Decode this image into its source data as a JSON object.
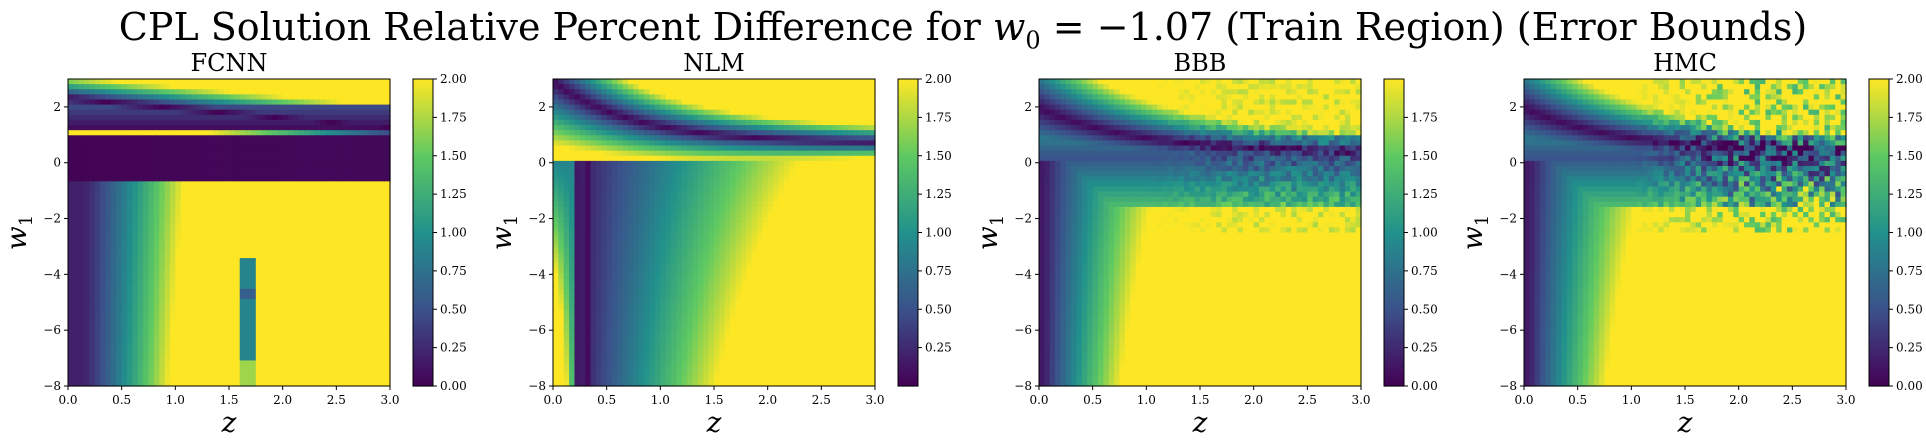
{
  "figure": {
    "title_prefix": "CPL Solution Relative Percent Difference for ",
    "title_var": "w",
    "title_sub": "0",
    "title_eq": " = −1.07",
    "title_suffix": " (Train Region) (Error Bounds)"
  },
  "colormap": "viridis",
  "colormap_stops": [
    "#440154",
    "#3b528b",
    "#21918c",
    "#5ec962",
    "#fde725"
  ],
  "chart_data": [
    {
      "type": "heatmap",
      "title": "FCNN",
      "xlabel": "z",
      "ylabel_var": "w",
      "ylabel_sub": "1",
      "xlim": [
        0,
        3
      ],
      "ylim": [
        -8,
        3
      ],
      "xticks": [
        0.0,
        0.5,
        1.0,
        1.5,
        2.0,
        2.5,
        3.0
      ],
      "yticks": [
        2,
        0,
        -2,
        -4,
        -6,
        -8
      ],
      "colorbar": {
        "vmin": 0.0,
        "vmax": 2.0,
        "ticks": [
          0.0,
          0.25,
          0.5,
          0.75,
          1.0,
          1.25,
          1.5,
          1.75,
          2.0
        ],
        "tick_labels": [
          "0.00",
          "0.25",
          "0.50",
          "0.75",
          "1.00",
          "1.25",
          "1.50",
          "1.75",
          "2.00"
        ]
      },
      "grid_resolution": [
        60,
        60
      ]
    },
    {
      "type": "heatmap",
      "title": "NLM",
      "xlabel": "z",
      "ylabel_var": "w",
      "ylabel_sub": "1",
      "xlim": [
        0,
        3
      ],
      "ylim": [
        -8,
        3
      ],
      "xticks": [
        0.0,
        0.5,
        1.0,
        1.5,
        2.0,
        2.5,
        3.0
      ],
      "yticks": [
        2,
        0,
        -2,
        -4,
        -6,
        -8
      ],
      "colorbar": {
        "vmin": 0.0,
        "vmax": 2.0,
        "ticks": [
          0.25,
          0.5,
          0.75,
          1.0,
          1.25,
          1.5,
          1.75,
          2.0
        ],
        "tick_labels": [
          "0.25",
          "0.50",
          "0.75",
          "1.00",
          "1.25",
          "1.50",
          "1.75",
          "2.00"
        ]
      },
      "grid_resolution": [
        60,
        60
      ]
    },
    {
      "type": "heatmap",
      "title": "BBB",
      "xlabel": "z",
      "ylabel_var": "w",
      "ylabel_sub": "1",
      "xlim": [
        0,
        3
      ],
      "ylim": [
        -8,
        3
      ],
      "xticks": [
        0.0,
        0.5,
        1.0,
        1.5,
        2.0,
        2.5,
        3.0
      ],
      "yticks": [
        2,
        0,
        -2,
        -4,
        -6,
        -8
      ],
      "colorbar": {
        "vmin": 0.0,
        "vmax": 2.0,
        "ticks": [
          0.0,
          0.25,
          0.5,
          0.75,
          1.0,
          1.25,
          1.5,
          1.75
        ],
        "tick_labels": [
          "0.00",
          "0.25",
          "0.50",
          "0.75",
          "1.00",
          "1.25",
          "1.50",
          "1.75"
        ]
      },
      "grid_resolution": [
        60,
        60
      ]
    },
    {
      "type": "heatmap",
      "title": "HMC",
      "xlabel": "z",
      "ylabel_var": "w",
      "ylabel_sub": "1",
      "xlim": [
        0,
        3
      ],
      "ylim": [
        -8,
        3
      ],
      "xticks": [
        0.0,
        0.5,
        1.0,
        1.5,
        2.0,
        2.5,
        3.0
      ],
      "yticks": [
        2,
        0,
        -2,
        -4,
        -6,
        -8
      ],
      "colorbar": {
        "vmin": 0.0,
        "vmax": 2.0,
        "ticks": [
          0.0,
          0.25,
          0.5,
          0.75,
          1.0,
          1.25,
          1.5,
          1.75,
          2.0
        ],
        "tick_labels": [
          "0.00",
          "0.25",
          "0.50",
          "0.75",
          "1.00",
          "1.25",
          "1.50",
          "1.75",
          "2.00"
        ]
      },
      "grid_resolution": [
        60,
        60
      ]
    }
  ]
}
